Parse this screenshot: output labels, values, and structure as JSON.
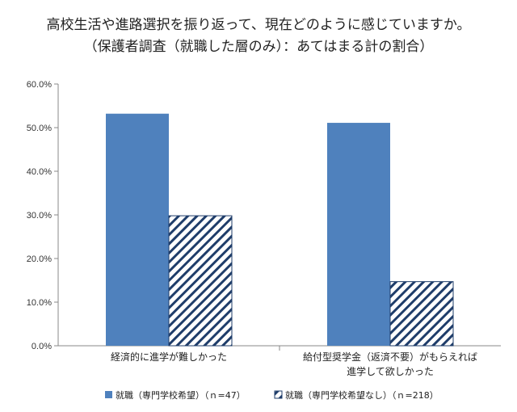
{
  "chart_data": {
    "type": "bar",
    "title": "高校生活や進路選択を振り返って、現在どのように感じていますか。",
    "subtitle": "（保護者調査（就職した層のみ）：あてはまる計の割合）",
    "categories": [
      [
        "経済的に進学が難しかった"
      ],
      [
        "給付型奨学金（返済不要）がもらえれば",
        "進学して欲しかった"
      ]
    ],
    "series": [
      {
        "name": "就職（専門学校希望）（ｎ=47）",
        "values": [
          53.2,
          51.1
        ],
        "color": "#4f81bd",
        "pattern": "solid"
      },
      {
        "name": "就職（専門学校希望なし）（ｎ=218）",
        "values": [
          29.8,
          14.7
        ],
        "color": "#1f3d6a",
        "pattern": "hatch"
      }
    ],
    "ylim": [
      0,
      60
    ],
    "yticks": [
      "0.0%",
      "10.0%",
      "20.0%",
      "30.0%",
      "40.0%",
      "50.0%",
      "60.0%"
    ],
    "xlabel": "",
    "ylabel": "",
    "legend": "bottom"
  }
}
